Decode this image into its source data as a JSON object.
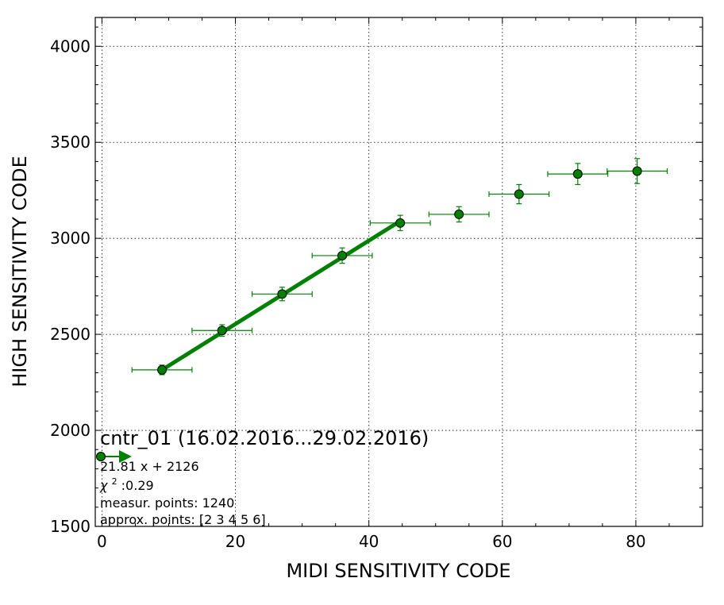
{
  "chart_data": {
    "type": "scatter",
    "xlabel": "MIDI SENSITIVITY CODE",
    "ylabel": "HIGH SENSITIVITY CODE",
    "xlim": [
      -1,
      90
    ],
    "ylim": [
      1500,
      4150
    ],
    "x_ticks": [
      0,
      20,
      40,
      60,
      80
    ],
    "y_ticks": [
      1500,
      2000,
      2500,
      3000,
      3500,
      4000
    ],
    "grid": true,
    "colors": {
      "series": "#008000",
      "fit": "#008000",
      "marker_edge": "#000000"
    },
    "series": [
      {
        "x": [
          9,
          18,
          27,
          36,
          44.7,
          53.5,
          62.5,
          71.3,
          80.2
        ],
        "y": [
          2315,
          2520,
          2710,
          2910,
          3080,
          3125,
          3230,
          3335,
          3350
        ],
        "x_err": [
          4.5,
          4.5,
          4.5,
          4.5,
          4.5,
          4.5,
          4.5,
          4.5,
          4.5
        ],
        "y_err": [
          25,
          30,
          35,
          40,
          40,
          40,
          50,
          55,
          65
        ]
      }
    ],
    "fit_line": {
      "x": [
        9,
        44.7
      ],
      "y": [
        2315,
        3090
      ]
    },
    "annotations": {
      "title": "cntr_01 (16.02.2016...29.02.2016)",
      "equation": "21.81 x + 2126",
      "chi_symbol": "χ",
      "chi_exp": "2",
      "chi_value": " :0.29",
      "measur_points": "measur. points: 1240",
      "approx_points": "approx. points: [2 3 4 5 6]"
    }
  }
}
